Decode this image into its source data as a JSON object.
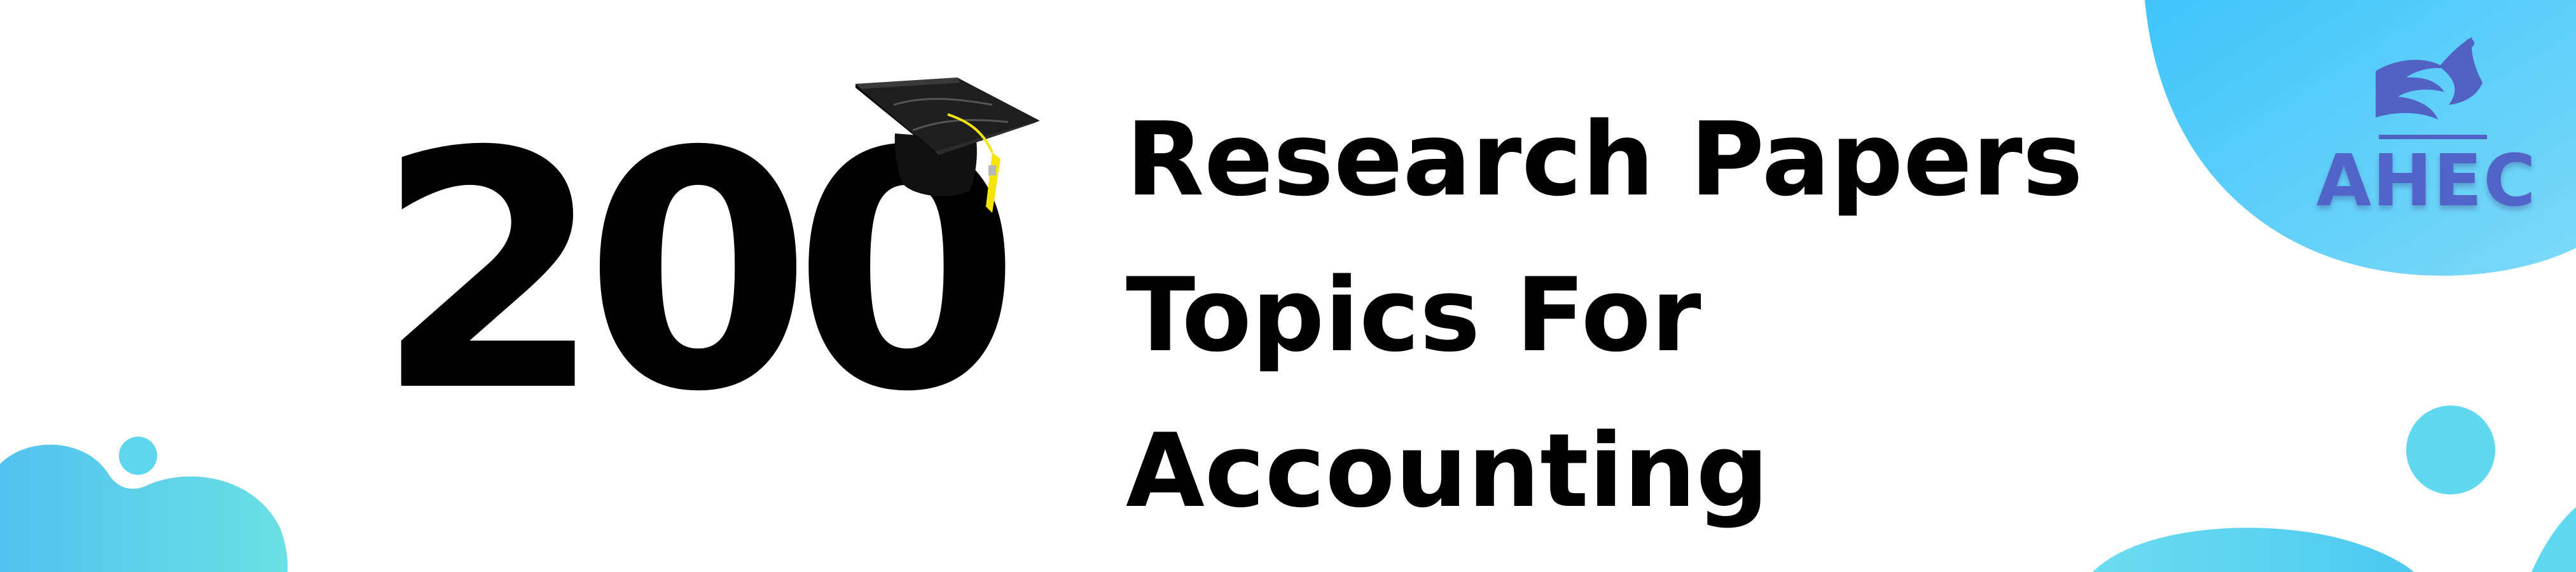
{
  "headline": {
    "number": "200",
    "line1": "Research Papers",
    "line2": "Topics For",
    "line3": "Accounting"
  },
  "logo": {
    "text": "AHEC",
    "color": "#5364c8"
  },
  "icons": {
    "graduation_cap": "graduation-cap-icon",
    "logo_mark": "bird-logo-icon"
  },
  "colors": {
    "blob_light": "#5fd9ea",
    "blob_blue": "#45c4f6",
    "text": "#000000",
    "tassel": "#f4e40c"
  }
}
